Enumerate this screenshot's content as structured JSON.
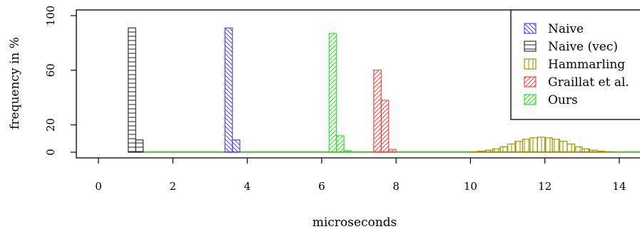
{
  "chart_data": {
    "type": "bar",
    "xlabel": "microseconds",
    "ylabel": "frequency in %",
    "xlim": [
      -0.6,
      14.4
    ],
    "ylim": [
      0,
      100
    ],
    "xticks": [
      0,
      2,
      4,
      6,
      8,
      10,
      12,
      14
    ],
    "yticks": [
      0,
      20,
      60,
      100
    ],
    "bin_width": 0.2,
    "grid": false,
    "legend_position": "top-right",
    "series": [
      {
        "name": "Naive",
        "color": "#4f4fe6",
        "hatch": "diagonal-down",
        "bins": [
          [
            3.4,
            3.6,
            91
          ],
          [
            3.6,
            3.8,
            9
          ]
        ]
      },
      {
        "name": "Naive (vec)",
        "color": "#333333",
        "hatch": "horizontal",
        "bins": [
          [
            0.8,
            1.0,
            91
          ],
          [
            1.0,
            1.2,
            9
          ]
        ]
      },
      {
        "name": "Hammarling",
        "color": "#9a9a00",
        "hatch": "vertical",
        "bins": [
          [
            10.0,
            10.2,
            0.4
          ],
          [
            10.2,
            10.4,
            0.8
          ],
          [
            10.4,
            10.6,
            1.5
          ],
          [
            10.6,
            10.8,
            2.5
          ],
          [
            10.8,
            11.0,
            4
          ],
          [
            11.0,
            11.2,
            6
          ],
          [
            11.2,
            11.4,
            8
          ],
          [
            11.4,
            11.6,
            9.5
          ],
          [
            11.6,
            11.8,
            10.5
          ],
          [
            11.8,
            12.0,
            11
          ],
          [
            12.0,
            12.2,
            10.5
          ],
          [
            12.2,
            12.4,
            9.5
          ],
          [
            12.4,
            12.6,
            8
          ],
          [
            12.6,
            12.8,
            6
          ],
          [
            12.8,
            13.0,
            4
          ],
          [
            13.0,
            13.2,
            2.5
          ],
          [
            13.2,
            13.4,
            1.5
          ],
          [
            13.4,
            13.6,
            0.8
          ],
          [
            13.6,
            13.8,
            0.4
          ]
        ]
      },
      {
        "name": "Graillat et al.",
        "color": "#e64f4f",
        "hatch": "diagonal-up",
        "bins": [
          [
            7.4,
            7.6,
            60
          ],
          [
            7.6,
            7.8,
            38
          ],
          [
            7.8,
            8.0,
            2
          ]
        ]
      },
      {
        "name": "Ours",
        "color": "#33dd33",
        "hatch": "diagonal-up",
        "bins": [
          [
            6.2,
            6.4,
            87
          ],
          [
            6.4,
            6.6,
            12
          ],
          [
            6.6,
            6.8,
            1
          ]
        ]
      }
    ]
  }
}
